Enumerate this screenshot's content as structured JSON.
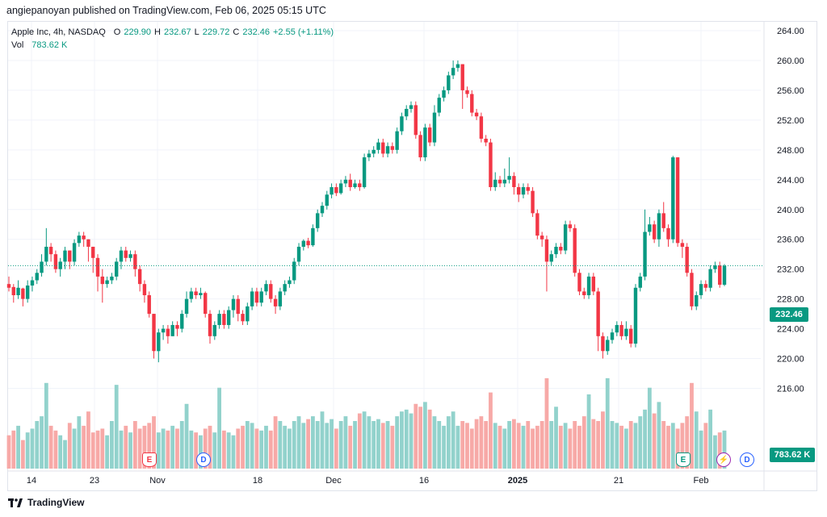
{
  "header": {
    "published_text": "angiepanoyan published on TradingView.com, Feb 06, 2025 05:15 UTC"
  },
  "legend": {
    "symbol_title": "Apple Inc, 4h, NASDAQ",
    "open_label": "O",
    "open_value": "229.90",
    "high_label": "H",
    "high_value": "232.67",
    "low_label": "L",
    "low_value": "229.72",
    "close_label": "C",
    "close_value": "232.46",
    "change": "+2.55 (+1.11%)",
    "vol_label": "Vol",
    "vol_value": "783.62 K"
  },
  "price_axis": {
    "ticks": [
      "264.00",
      "260.00",
      "256.00",
      "252.00",
      "248.00",
      "244.00",
      "240.00",
      "236.00",
      "232.00",
      "228.00",
      "224.00",
      "220.00",
      "216.00"
    ],
    "last_price_tag": "232.46",
    "volume_tag": "783.62 K"
  },
  "time_axis": {
    "labels": [
      "14",
      "23",
      "Nov",
      "18",
      "Dec",
      "16",
      "2025",
      "21",
      "Feb"
    ]
  },
  "events": {
    "earnings_label": "E",
    "dividend_label": "D",
    "split_label": "⚡"
  },
  "footer": {
    "brand": "TradingView"
  },
  "colors": {
    "up": "#089981",
    "down": "#f23645",
    "vol_up": "#92d2cc",
    "vol_down": "#f7a9a7",
    "grid": "#f0f3fa"
  },
  "chart_data": {
    "type": "candlestick",
    "symbol": "Apple Inc, 4h, NASDAQ",
    "ylim": [
      215,
      266
    ],
    "price_candles": [
      [
        230,
        229.5,
        231,
        229
      ],
      [
        229.6,
        228.5,
        230,
        227.5
      ],
      [
        228.5,
        229.5,
        230.5,
        228
      ],
      [
        229.4,
        228,
        229.5,
        227
      ],
      [
        228,
        229.8,
        230.5,
        227.5
      ],
      [
        229.8,
        230.5,
        231,
        229
      ],
      [
        230.5,
        231.5,
        232,
        230
      ],
      [
        231.5,
        233,
        234,
        231
      ],
      [
        233,
        235,
        237.5,
        232.5
      ],
      [
        235,
        234,
        235.5,
        233
      ],
      [
        234,
        232,
        234.5,
        231.5
      ],
      [
        232,
        233,
        233.5,
        231
      ],
      [
        233,
        234.5,
        235,
        232
      ],
      [
        234.5,
        233,
        234.5,
        232
      ],
      [
        233,
        235.5,
        236,
        232.5
      ],
      [
        235.5,
        236.5,
        237,
        235
      ],
      [
        236.5,
        236,
        237,
        235
      ],
      [
        236,
        235,
        236,
        233
      ],
      [
        235,
        233.5,
        235,
        231.5
      ],
      [
        233.5,
        231,
        234,
        229
      ],
      [
        231,
        230,
        232,
        227.5
      ],
      [
        230,
        230.5,
        231,
        229.5
      ],
      [
        230.5,
        231,
        231.5,
        230
      ],
      [
        231,
        233,
        233.5,
        230.5
      ],
      [
        233,
        234.5,
        235,
        232
      ],
      [
        234.5,
        233.5,
        235,
        233
      ],
      [
        233.5,
        234,
        234.5,
        233
      ],
      [
        234,
        232,
        234.5,
        231
      ],
      [
        232,
        230,
        232.5,
        229
      ],
      [
        230,
        228.5,
        230.5,
        227.5
      ],
      [
        228.5,
        226,
        229,
        225.5
      ],
      [
        226,
        221,
        226,
        220
      ],
      [
        221,
        223.5,
        224,
        219.5
      ],
      [
        223.5,
        224,
        224.5,
        222.5
      ],
      [
        224,
        223,
        224.5,
        222
      ],
      [
        223,
        224.5,
        225,
        223
      ],
      [
        224.5,
        224,
        225,
        223
      ],
      [
        224,
        226,
        226.5,
        223.5
      ],
      [
        226,
        228,
        229,
        225.5
      ],
      [
        228,
        229,
        229.5,
        227.5
      ],
      [
        229,
        228.5,
        229.5,
        228
      ],
      [
        228.5,
        228.8,
        229.5,
        228
      ],
      [
        228.8,
        226,
        229,
        225.5
      ],
      [
        226,
        223,
        226.5,
        222
      ],
      [
        223,
        224.5,
        225,
        222.5
      ],
      [
        224.5,
        226,
        226.5,
        224
      ],
      [
        226,
        224.5,
        226.5,
        224
      ],
      [
        224.5,
        226.5,
        227,
        224
      ],
      [
        226.5,
        228,
        228.5,
        225.5
      ],
      [
        228,
        226,
        228.5,
        225
      ],
      [
        226,
        225,
        226.5,
        224.5
      ],
      [
        225,
        227,
        227.5,
        224.5
      ],
      [
        227,
        229,
        229.5,
        226.5
      ],
      [
        229,
        227.5,
        229.5,
        227
      ],
      [
        227.5,
        229,
        229.5,
        227
      ],
      [
        229,
        230,
        230.5,
        228.5
      ],
      [
        230,
        228,
        230.5,
        227.5
      ],
      [
        228,
        227,
        228.5,
        226
      ],
      [
        227,
        229,
        229.5,
        226.5
      ],
      [
        229,
        230,
        230.5,
        228.5
      ],
      [
        230,
        230.5,
        231,
        229.5
      ],
      [
        230.5,
        233,
        233.5,
        230
      ],
      [
        233,
        235,
        235.5,
        232.5
      ],
      [
        235,
        235.8,
        236,
        234.5
      ],
      [
        235.8,
        235.2,
        236.2,
        234.8
      ],
      [
        235.2,
        237.5,
        238,
        235
      ],
      [
        237.5,
        239.5,
        240,
        237
      ],
      [
        239.5,
        240.5,
        241,
        239
      ],
      [
        240.5,
        242,
        242.5,
        240
      ],
      [
        242,
        243,
        243.5,
        241.5
      ],
      [
        243,
        242.2,
        243.5,
        241.8
      ],
      [
        242.2,
        243.5,
        244,
        242
      ],
      [
        243.5,
        244,
        244.5,
        243
      ],
      [
        244,
        243,
        244.8,
        242.5
      ],
      [
        243,
        243.5,
        244,
        242.8
      ],
      [
        243.5,
        243,
        244,
        242.5
      ],
      [
        243,
        247,
        247.5,
        242.8
      ],
      [
        247,
        247.5,
        248,
        246.5
      ],
      [
        247.5,
        248,
        248.5,
        247
      ],
      [
        248,
        249,
        249.5,
        247.5
      ],
      [
        249,
        247.5,
        249.5,
        247
      ],
      [
        247.5,
        248.5,
        249,
        247
      ],
      [
        248.5,
        248,
        249,
        247.5
      ],
      [
        248,
        250.5,
        251,
        247.5
      ],
      [
        250.5,
        252.5,
        253,
        250
      ],
      [
        252.5,
        253.5,
        254,
        252
      ],
      [
        253.5,
        254,
        254.5,
        253
      ],
      [
        254,
        250,
        254.5,
        249.5
      ],
      [
        250,
        247,
        250.5,
        246.5
      ],
      [
        247,
        251,
        251.5,
        246.5
      ],
      [
        251,
        249,
        251.5,
        248.5
      ],
      [
        249,
        253,
        254,
        248.5
      ],
      [
        253,
        255,
        255.5,
        252.5
      ],
      [
        255,
        256,
        256.5,
        254.5
      ],
      [
        256,
        258,
        258.5,
        255.5
      ],
      [
        258,
        259,
        260,
        257.5
      ],
      [
        259,
        259.5,
        260,
        258.5
      ],
      [
        259.5,
        256,
        259.5,
        253.5
      ],
      [
        256,
        255.5,
        256.5,
        255
      ],
      [
        255.5,
        253,
        256,
        252.5
      ],
      [
        253,
        252.5,
        253.5,
        252
      ],
      [
        252.5,
        249.5,
        253,
        249
      ],
      [
        249.5,
        249,
        250,
        248.5
      ],
      [
        249,
        243,
        249.5,
        242.5
      ],
      [
        243,
        244,
        245,
        242.5
      ],
      [
        244,
        243.5,
        244.5,
        243
      ],
      [
        243.5,
        244,
        245.5,
        243
      ],
      [
        244,
        244.5,
        247,
        243.5
      ],
      [
        244.5,
        243,
        245,
        242
      ],
      [
        243,
        242,
        243.5,
        241
      ],
      [
        242,
        243,
        243.5,
        241.5
      ],
      [
        243,
        242.5,
        243.5,
        242
      ],
      [
        242.5,
        239.5,
        243,
        239
      ],
      [
        239.5,
        236.5,
        240,
        236
      ],
      [
        236.5,
        236,
        237,
        235
      ],
      [
        236,
        233,
        236.5,
        229
      ],
      [
        233,
        234,
        234.5,
        232.5
      ],
      [
        234,
        235,
        235.5,
        233.5
      ],
      [
        235,
        234.5,
        235.5,
        234
      ],
      [
        234.5,
        238,
        238.5,
        234
      ],
      [
        238,
        237.5,
        238.5,
        237
      ],
      [
        237.5,
        231.5,
        238,
        231
      ],
      [
        231.5,
        229,
        232,
        228.5
      ],
      [
        229,
        228.5,
        229.5,
        228
      ],
      [
        228.5,
        231,
        231.5,
        228
      ],
      [
        231,
        229,
        231.5,
        228.5
      ],
      [
        229,
        223,
        229.5,
        221
      ],
      [
        223,
        221,
        223.5,
        220
      ],
      [
        221,
        222.5,
        223,
        220.5
      ],
      [
        222.5,
        223.5,
        224,
        222
      ],
      [
        223.5,
        224.5,
        225,
        223
      ],
      [
        224.5,
        223,
        225,
        222.5
      ],
      [
        223,
        224,
        225,
        222.5
      ],
      [
        224,
        222,
        224.5,
        221.5
      ],
      [
        222,
        229.5,
        230,
        221.5
      ],
      [
        229.5,
        231,
        231.5,
        229
      ],
      [
        231,
        237,
        240,
        230.5
      ],
      [
        237,
        238,
        239,
        236.5
      ],
      [
        238,
        236,
        238.5,
        235.5
      ],
      [
        236,
        239.5,
        240,
        235
      ],
      [
        239.5,
        237.5,
        241,
        237
      ],
      [
        237.5,
        236,
        238,
        235
      ],
      [
        236,
        247,
        247.2,
        235.5
      ],
      [
        247,
        235.5,
        247,
        235
      ],
      [
        235.5,
        235,
        236,
        233.5
      ],
      [
        235,
        231.5,
        235.5,
        231
      ],
      [
        231.5,
        227,
        232,
        226.5
      ],
      [
        227,
        228.5,
        229,
        226.5
      ],
      [
        228.5,
        230,
        230.5,
        228
      ],
      [
        230,
        229.5,
        230.5,
        229
      ],
      [
        229.5,
        232,
        232.5,
        229
      ],
      [
        232,
        232.5,
        233,
        231.5
      ],
      [
        232.5,
        229.9,
        233,
        229.5
      ],
      [
        229.9,
        232.46,
        232.67,
        229.72
      ]
    ],
    "volume_relative": [
      0.35,
      0.4,
      0.45,
      0.3,
      0.38,
      0.42,
      0.5,
      0.55,
      0.9,
      0.45,
      0.4,
      0.35,
      0.3,
      0.48,
      0.42,
      0.55,
      0.45,
      0.6,
      0.38,
      0.4,
      0.42,
      0.35,
      0.5,
      0.88,
      0.4,
      0.45,
      0.38,
      0.5,
      0.42,
      0.45,
      0.48,
      0.55,
      0.38,
      0.42,
      0.4,
      0.45,
      0.42,
      0.5,
      0.68,
      0.4,
      0.38,
      0.35,
      0.42,
      0.45,
      0.38,
      0.85,
      0.4,
      0.38,
      0.35,
      0.42,
      0.45,
      0.5,
      0.48,
      0.42,
      0.4,
      0.45,
      0.4,
      0.55,
      0.5,
      0.45,
      0.42,
      0.5,
      0.55,
      0.48,
      0.52,
      0.55,
      0.5,
      0.6,
      0.48,
      0.52,
      0.42,
      0.5,
      0.55,
      0.45,
      0.5,
      0.58,
      0.6,
      0.55,
      0.5,
      0.52,
      0.48,
      0.5,
      0.45,
      0.55,
      0.6,
      0.62,
      0.58,
      0.68,
      0.65,
      0.7,
      0.62,
      0.55,
      0.5,
      0.45,
      0.55,
      0.6,
      0.45,
      0.5,
      0.48,
      0.42,
      0.52,
      0.55,
      0.5,
      0.8,
      0.48,
      0.45,
      0.42,
      0.5,
      0.52,
      0.48,
      0.45,
      0.5,
      0.42,
      0.45,
      0.5,
      0.95,
      0.5,
      0.65,
      0.45,
      0.48,
      0.42,
      0.5,
      0.45,
      0.55,
      0.78,
      0.52,
      0.5,
      0.6,
      0.95,
      0.5,
      0.48,
      0.45,
      0.42,
      0.5,
      0.48,
      0.55,
      0.62,
      0.85,
      0.58,
      0.7,
      0.5,
      0.45,
      0.48,
      0.42,
      0.48,
      0.55,
      0.9,
      0.6,
      0.4,
      0.48,
      0.62,
      0.35,
      0.38,
      0.4
    ]
  }
}
